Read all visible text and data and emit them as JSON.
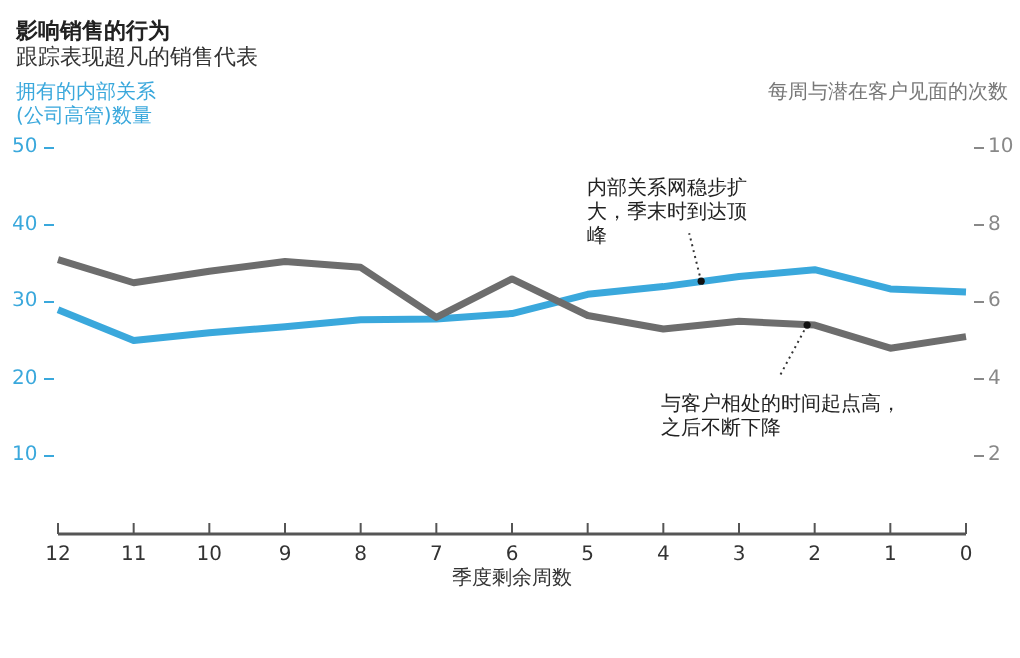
{
  "chart_data": {
    "type": "line",
    "title": "影响销售的行为",
    "subtitle": "跟踪表现超凡的销售代表",
    "xlabel": "季度剩余周数",
    "ylabel": "拥有的内部关系(公司高管)数量",
    "y2label": "每周与潜在客户见面的次数",
    "x": [
      12,
      11,
      10,
      9,
      8,
      7,
      6,
      5,
      4,
      3,
      2,
      1,
      0
    ],
    "xlim": [
      12,
      0
    ],
    "xticks": [
      12,
      11,
      10,
      9,
      8,
      7,
      6,
      5,
      4,
      3,
      2,
      1,
      0
    ],
    "ylim": [
      0,
      50
    ],
    "yticks": [
      10,
      20,
      30,
      40,
      50
    ],
    "y2lim": [
      0,
      10
    ],
    "y2ticks": [
      2,
      4,
      6,
      8,
      10
    ],
    "series": [
      {
        "color": "#3aa8dc",
        "values": [
          29,
          25,
          26,
          26.8,
          27.7,
          27.8,
          28.5,
          31,
          32,
          33.3,
          34.2,
          31.7,
          31.3
        ]
      },
      {
        "color": "#6d6d6d",
        "axis": "y2",
        "values": [
          7.1,
          6.5,
          6.8,
          7.05,
          6.9,
          5.6,
          6.6,
          5.65,
          5.3,
          5.5,
          5.4,
          4.8,
          5.1
        ]
      }
    ],
    "annotations": [
      {
        "text": "内部关系网稳步扩大，季末时到达顶峰",
        "x": 3.5,
        "y": 32.7
      },
      {
        "text": "与客户相处的时间起点高，之后不断下降",
        "x": 2.1,
        "y": 27
      }
    ],
    "grid": false,
    "legend": false,
    "marker": "none",
    "line_style": "solid"
  }
}
